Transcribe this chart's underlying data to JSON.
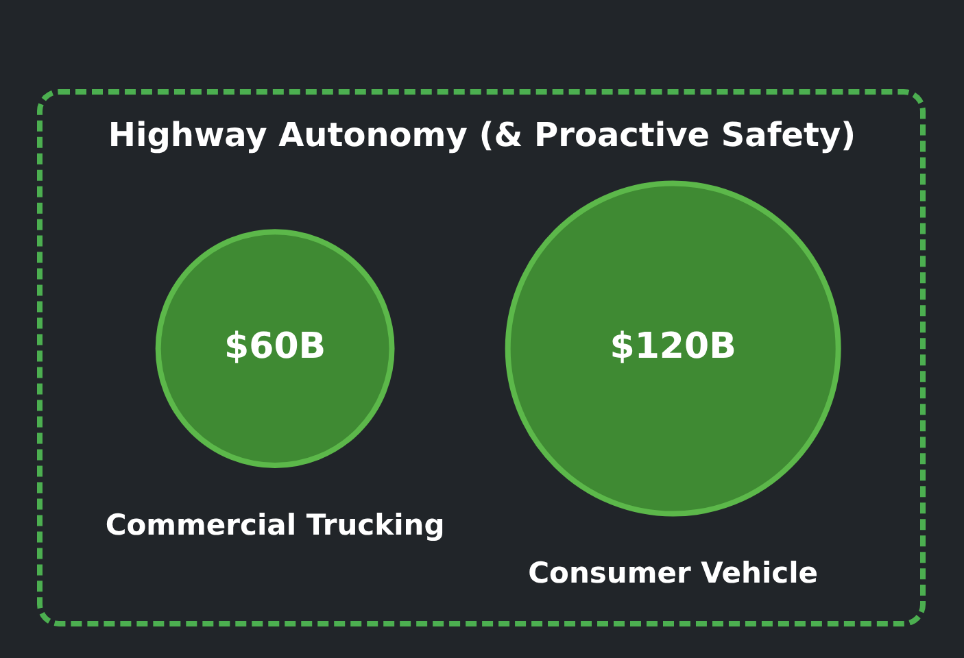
{
  "chart_data": {
    "type": "other",
    "title": "Highway Autonomy (& Proactive Safety)",
    "categories": [
      "Commercial Trucking",
      "Consumer Vehicle"
    ],
    "values": [
      60,
      120
    ],
    "value_labels": [
      "$60B",
      "$120B"
    ],
    "color": "#3f8a33"
  }
}
